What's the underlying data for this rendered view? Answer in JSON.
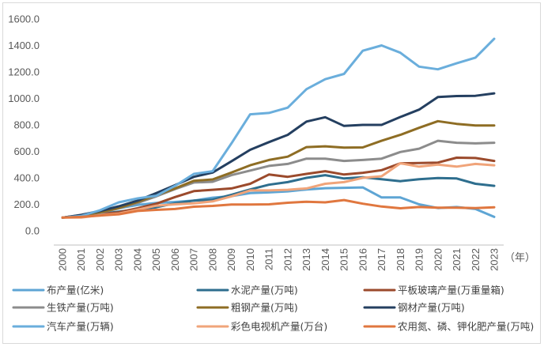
{
  "chart_data": {
    "type": "line",
    "title": "",
    "xlabel": "",
    "ylabel": "",
    "x_unit_label": "（年）",
    "categories": [
      "2000",
      "2001",
      "2002",
      "2003",
      "2004",
      "2005",
      "2006",
      "2007",
      "2008",
      "2009",
      "2010",
      "2011",
      "2012",
      "2013",
      "2014",
      "2015",
      "2016",
      "2017",
      "2018",
      "2019",
      "2020",
      "2021",
      "2022",
      "2023"
    ],
    "ylim": [
      0,
      1600
    ],
    "y_ticks": [
      "0.0",
      "200.0",
      "400.0",
      "600.0",
      "800.0",
      "1000.0",
      "1200.0",
      "1400.0",
      "1600.0"
    ],
    "grid": false,
    "legend_position": "bottom",
    "series": [
      {
        "name": "布产量(亿米)",
        "color": "#5ea5d4",
        "values": [
          100,
          115,
          140,
          170,
          195,
          210,
          218,
          228,
          250,
          262,
          285,
          290,
          298,
          312,
          322,
          325,
          328,
          252,
          252,
          200,
          172,
          180,
          165,
          105
        ]
      },
      {
        "name": "水泥产量(万吨)",
        "color": "#2e6e8e",
        "values": [
          100,
          112,
          128,
          145,
          162,
          178,
          208,
          228,
          235,
          272,
          312,
          348,
          368,
          400,
          420,
          395,
          405,
          390,
          375,
          390,
          398,
          395,
          355,
          340
        ]
      },
      {
        "name": "平板玻璃产量(万重量箱)",
        "color": "#9b4a2c",
        "values": [
          100,
          110,
          125,
          140,
          170,
          205,
          255,
          300,
          310,
          320,
          355,
          425,
          408,
          430,
          450,
          425,
          438,
          458,
          510,
          512,
          515,
          552,
          550,
          528
        ]
      },
      {
        "name": "生铁产量(万吨)",
        "color": "#8c8c8c",
        "values": [
          100,
          118,
          135,
          170,
          210,
          260,
          315,
          365,
          370,
          420,
          455,
          490,
          505,
          545,
          545,
          528,
          535,
          545,
          595,
          620,
          680,
          665,
          660,
          665
        ]
      },
      {
        "name": "粗钢产量(万吨)",
        "color": "#8e6d24",
        "values": [
          100,
          118,
          140,
          172,
          218,
          270,
          320,
          378,
          388,
          440,
          495,
          535,
          560,
          632,
          638,
          628,
          630,
          680,
          725,
          778,
          828,
          808,
          795,
          795
        ]
      },
      {
        "name": "钢材产量(万吨)",
        "color": "#243f60",
        "values": [
          100,
          120,
          150,
          185,
          228,
          285,
          345,
          408,
          440,
          525,
          612,
          670,
          725,
          825,
          858,
          792,
          800,
          800,
          860,
          915,
          1010,
          1018,
          1020,
          1038
        ]
      },
      {
        "name": "汽车产量(万辆)",
        "color": "#6aaedc",
        "values": [
          100,
          112,
          155,
          215,
          245,
          265,
          340,
          430,
          450,
          660,
          880,
          890,
          930,
          1070,
          1145,
          1185,
          1360,
          1400,
          1345,
          1240,
          1220,
          1265,
          1308,
          1450
        ]
      },
      {
        "name": "彩色电视机产量(万台)",
        "color": "#f0a47a",
        "values": [
          100,
          100,
          118,
          130,
          160,
          190,
          200,
          208,
          222,
          260,
          305,
          305,
          310,
          320,
          355,
          368,
          400,
          412,
          510,
          485,
          500,
          485,
          505,
          495
        ]
      },
      {
        "name": "农用氮、磷、钾化肥产量(万吨)",
        "color": "#e0773f",
        "values": [
          100,
          105,
          115,
          125,
          150,
          158,
          165,
          182,
          188,
          198,
          198,
          200,
          212,
          220,
          215,
          232,
          205,
          183,
          170,
          180,
          175,
          175,
          172,
          178
        ]
      }
    ]
  }
}
